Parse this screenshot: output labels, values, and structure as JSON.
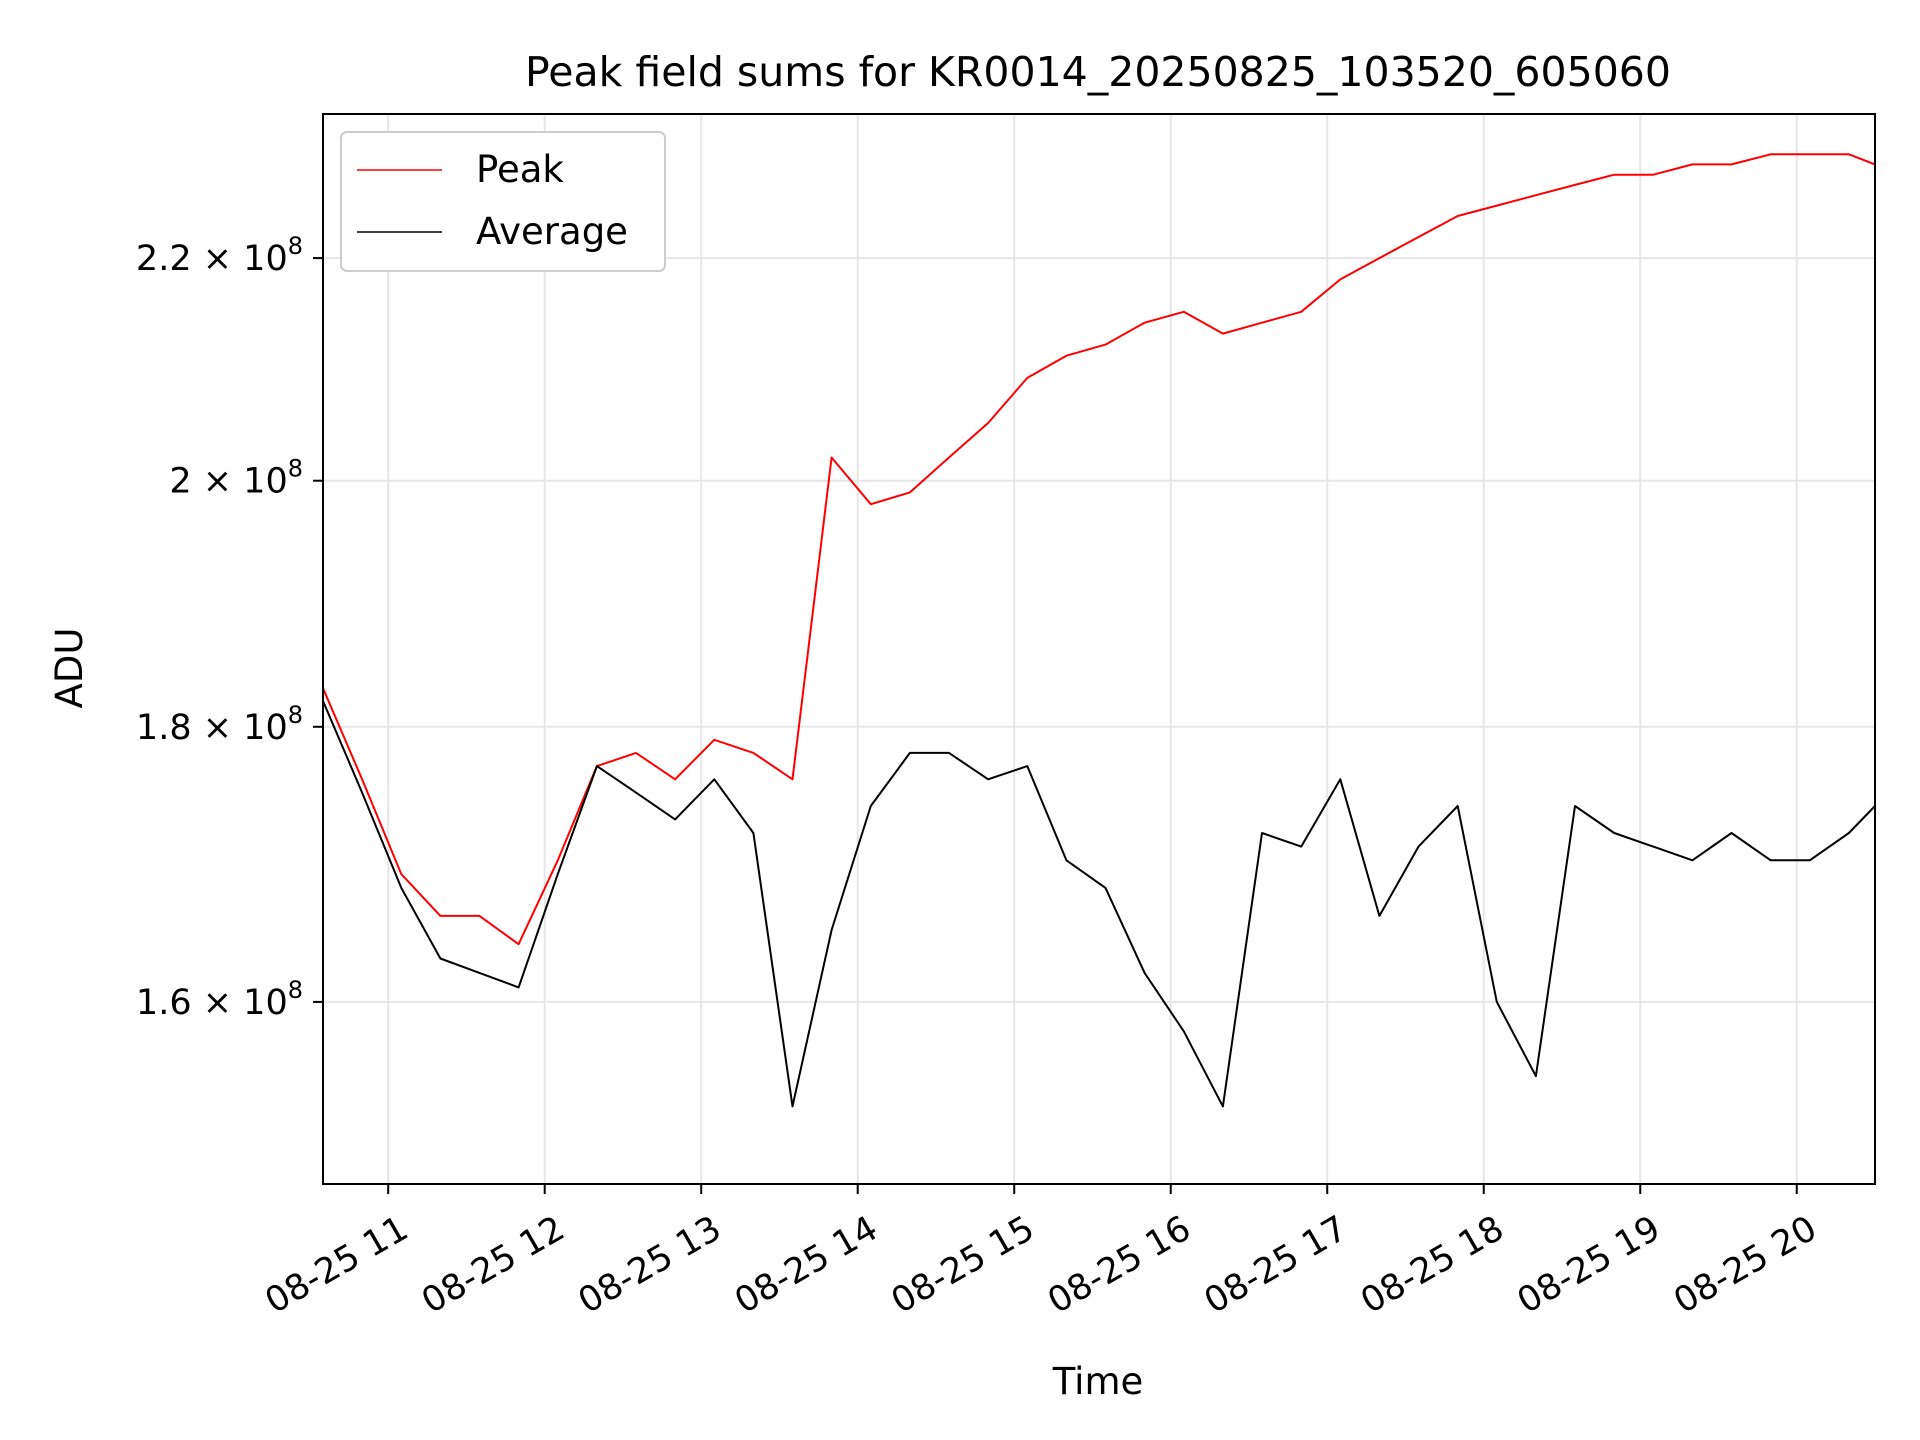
{
  "chart_data": {
    "type": "line",
    "title": "Peak field sums for KR0014_20250825_103520_605060",
    "xlabel": "Time",
    "ylabel": "ADU",
    "xlim": [
      "2025-08-25 10:35",
      "2025-08-25 20:30"
    ],
    "ylim": [
      148000000,
      234000000
    ],
    "y_scale": "log",
    "grid": true,
    "legend_position": "top-left",
    "x_ticks": [
      {
        "value": "2025-08-25 11:00",
        "label": "08-25 11"
      },
      {
        "value": "2025-08-25 12:00",
        "label": "08-25 12"
      },
      {
        "value": "2025-08-25 13:00",
        "label": "08-25 13"
      },
      {
        "value": "2025-08-25 14:00",
        "label": "08-25 14"
      },
      {
        "value": "2025-08-25 15:00",
        "label": "08-25 15"
      },
      {
        "value": "2025-08-25 16:00",
        "label": "08-25 16"
      },
      {
        "value": "2025-08-25 17:00",
        "label": "08-25 17"
      },
      {
        "value": "2025-08-25 18:00",
        "label": "08-25 18"
      },
      {
        "value": "2025-08-25 19:00",
        "label": "08-25 19"
      },
      {
        "value": "2025-08-25 20:00",
        "label": "08-25 20"
      }
    ],
    "y_ticks": [
      {
        "value": 160000000,
        "mantissa": "1.6",
        "exponent": "8"
      },
      {
        "value": 180000000,
        "mantissa": "1.8",
        "exponent": "8"
      },
      {
        "value": 200000000,
        "mantissa": "2",
        "exponent": "8"
      },
      {
        "value": 220000000,
        "mantissa": "2.2",
        "exponent": "8"
      }
    ],
    "series": [
      {
        "name": "Peak",
        "color": "#ff0000",
        "x": [
          "2025-08-25 10:35",
          "2025-08-25 10:50",
          "2025-08-25 11:05",
          "2025-08-25 11:20",
          "2025-08-25 11:35",
          "2025-08-25 11:50",
          "2025-08-25 12:05",
          "2025-08-25 12:20",
          "2025-08-25 12:35",
          "2025-08-25 12:50",
          "2025-08-25 13:05",
          "2025-08-25 13:20",
          "2025-08-25 13:35",
          "2025-08-25 13:50",
          "2025-08-25 14:05",
          "2025-08-25 14:20",
          "2025-08-25 14:35",
          "2025-08-25 14:50",
          "2025-08-25 15:05",
          "2025-08-25 15:20",
          "2025-08-25 15:35",
          "2025-08-25 15:50",
          "2025-08-25 16:05",
          "2025-08-25 16:20",
          "2025-08-25 16:35",
          "2025-08-25 16:50",
          "2025-08-25 17:05",
          "2025-08-25 17:20",
          "2025-08-25 17:35",
          "2025-08-25 17:50",
          "2025-08-25 18:05",
          "2025-08-25 18:20",
          "2025-08-25 18:35",
          "2025-08-25 18:50",
          "2025-08-25 19:05",
          "2025-08-25 19:20",
          "2025-08-25 19:35",
          "2025-08-25 19:50",
          "2025-08-25 20:05",
          "2025-08-25 20:20",
          "2025-08-25 20:30"
        ],
        "y": [
          183000000,
          176000000,
          169000000,
          166000000,
          166000000,
          164000000,
          170000000,
          177000000,
          178000000,
          176000000,
          179000000,
          178000000,
          176000000,
          202000000,
          198000000,
          199000000,
          202000000,
          205000000,
          209000000,
          211000000,
          212000000,
          214000000,
          215000000,
          213000000,
          214000000,
          215000000,
          218000000,
          220000000,
          222000000,
          224000000,
          225000000,
          226000000,
          227000000,
          228000000,
          228000000,
          229000000,
          229000000,
          230000000,
          230000000,
          230000000,
          229000000
        ]
      },
      {
        "name": "Average",
        "color": "#000000",
        "x": [
          "2025-08-25 10:35",
          "2025-08-25 10:50",
          "2025-08-25 11:05",
          "2025-08-25 11:20",
          "2025-08-25 11:35",
          "2025-08-25 11:50",
          "2025-08-25 12:05",
          "2025-08-25 12:20",
          "2025-08-25 12:35",
          "2025-08-25 12:50",
          "2025-08-25 13:05",
          "2025-08-25 13:20",
          "2025-08-25 13:35",
          "2025-08-25 13:50",
          "2025-08-25 14:05",
          "2025-08-25 14:20",
          "2025-08-25 14:35",
          "2025-08-25 14:50",
          "2025-08-25 15:05",
          "2025-08-25 15:20",
          "2025-08-25 15:35",
          "2025-08-25 15:50",
          "2025-08-25 16:05",
          "2025-08-25 16:20",
          "2025-08-25 16:35",
          "2025-08-25 16:50",
          "2025-08-25 17:05",
          "2025-08-25 17:20",
          "2025-08-25 17:35",
          "2025-08-25 17:50",
          "2025-08-25 18:05",
          "2025-08-25 18:20",
          "2025-08-25 18:35",
          "2025-08-25 18:50",
          "2025-08-25 19:05",
          "2025-08-25 19:20",
          "2025-08-25 19:35",
          "2025-08-25 19:50",
          "2025-08-25 20:05",
          "2025-08-25 20:20",
          "2025-08-25 20:30"
        ],
        "y": [
          182000000,
          175000000,
          168000000,
          163000000,
          162000000,
          161000000,
          169000000,
          177000000,
          175000000,
          173000000,
          176000000,
          172000000,
          153000000,
          165000000,
          174000000,
          178000000,
          178000000,
          176000000,
          177000000,
          170000000,
          168000000,
          162000000,
          158000000,
          153000000,
          172000000,
          171000000,
          176000000,
          166000000,
          171000000,
          174000000,
          160000000,
          155000000,
          174000000,
          172000000,
          171000000,
          170000000,
          172000000,
          170000000,
          170000000,
          172000000,
          174000000
        ]
      }
    ]
  }
}
